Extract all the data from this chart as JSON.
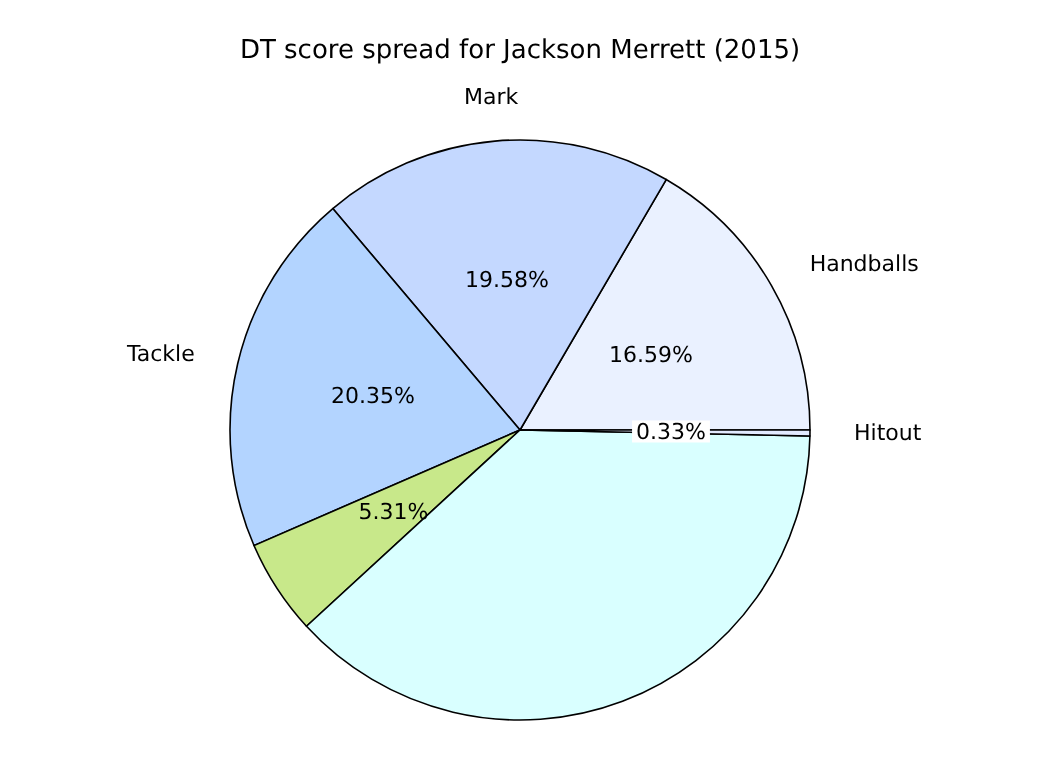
{
  "chart_data": {
    "type": "pie",
    "title": "DT score spread for Jackson Merrett (2015)",
    "categories": [
      "Handballs",
      "Mark",
      "Tackle",
      null,
      null,
      "Hitout"
    ],
    "values": [
      16.59,
      19.58,
      20.35,
      5.31,
      37.84,
      0.33
    ],
    "colors": [
      "#eaf1ff",
      "#c4d8ff",
      "#b3d4ff",
      "#c8e88a",
      "#d9ffff",
      "#e2eaff"
    ],
    "value_labels": [
      "16.59%",
      "19.58%",
      "20.35%",
      "5.31%",
      null,
      "0.33%"
    ],
    "legend": false
  }
}
